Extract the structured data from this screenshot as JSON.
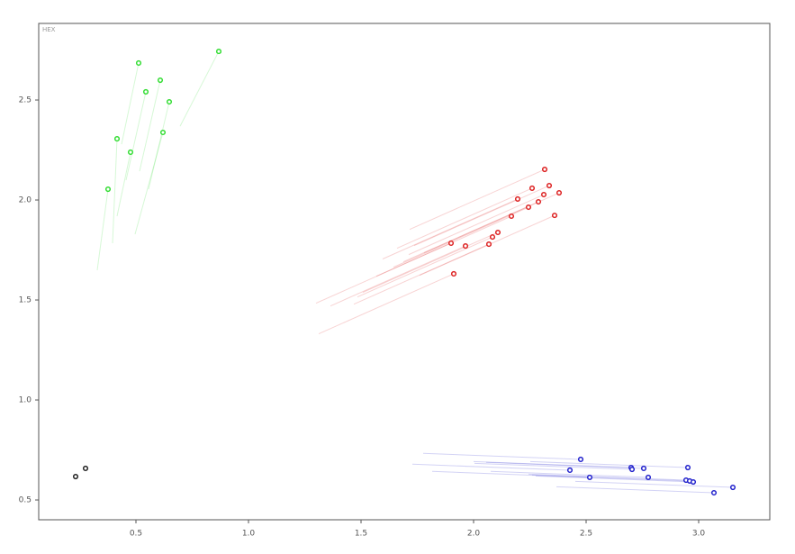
{
  "chart_data": {
    "type": "scatter",
    "label": "HEX",
    "xlim": [
      0.068,
      3.316
    ],
    "ylim": [
      0.401,
      2.883
    ],
    "xticks": [
      0.5,
      {
        "value": 1,
        "label": "1.0"
      },
      1.5,
      {
        "value": 2,
        "label": "2.0"
      },
      2.5,
      {
        "value": 3,
        "label": "3.0"
      }
    ],
    "yticks": [
      0.5,
      {
        "value": 1,
        "label": "1.0"
      },
      1.5,
      {
        "value": 2,
        "label": "2.0"
      },
      2.5
    ],
    "series": [
      {
        "color": "#33dd33",
        "x": [
          0.512,
          0.608,
          0.544,
          0.648,
          0.416,
          0.476,
          0.62,
          0.376,
          0.868
        ],
        "values": [
          2.685,
          2.599,
          2.541,
          2.491,
          2.306,
          2.239,
          2.338,
          2.054,
          2.743
        ],
        "tail_x": [
          0.436,
          0.516,
          0.456,
          0.556,
          0.396,
          0.416,
          0.496,
          0.328,
          0.696
        ],
        "tail_y": [
          2.279,
          2.144,
          2.099,
          2.054,
          1.784,
          1.919,
          1.829,
          1.649,
          2.369
        ]
      },
      {
        "color": "#dd2222",
        "x": [
          2.316,
          2.336,
          2.26,
          2.38,
          2.312,
          2.196,
          2.288,
          2.244,
          2.168,
          2.36,
          2.108,
          2.084,
          1.9,
          1.964,
          2.068,
          1.912
        ],
        "values": [
          2.153,
          2.072,
          2.059,
          2.036,
          2.027,
          2.005,
          1.991,
          1.964,
          1.919,
          1.923,
          1.838,
          1.815,
          1.784,
          1.77,
          1.779,
          1.631
        ],
        "tail_x": [
          1.716,
          1.736,
          1.66,
          1.78,
          1.712,
          1.596,
          1.688,
          1.644,
          1.568,
          1.76,
          1.508,
          1.484,
          1.3,
          1.364,
          1.468,
          1.312
        ],
        "tail_y": [
          1.853,
          1.772,
          1.759,
          1.736,
          1.727,
          1.705,
          1.691,
          1.664,
          1.619,
          1.623,
          1.538,
          1.515,
          1.484,
          1.47,
          1.479,
          1.331
        ]
      },
      {
        "color": "#2222cc",
        "x": [
          2.476,
          2.428,
          2.516,
          2.7,
          2.704,
          2.756,
          2.776,
          2.952,
          2.944,
          2.96,
          2.976,
          3.068,
          3.152
        ],
        "values": [
          0.703,
          0.649,
          0.613,
          0.662,
          0.653,
          0.658,
          0.613,
          0.662,
          0.599,
          0.595,
          0.59,
          0.536,
          0.563
        ],
        "tail_x": [
          1.776,
          1.728,
          1.816,
          2.0,
          2.004,
          2.056,
          2.076,
          2.252,
          2.244,
          2.26,
          2.276,
          2.368,
          2.452
        ],
        "tail_y": [
          0.733,
          0.679,
          0.643,
          0.692,
          0.683,
          0.688,
          0.643,
          0.692,
          0.629,
          0.625,
          0.62,
          0.566,
          0.593
        ]
      },
      {
        "color": "#222222",
        "x": [
          0.232,
          0.276
        ],
        "values": [
          0.617,
          0.658
        ]
      }
    ]
  }
}
